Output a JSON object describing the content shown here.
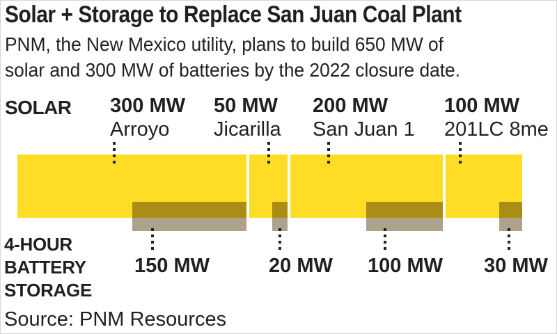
{
  "title": "Solar + Storage to Replace San Juan Coal Plant",
  "subtitle_lines": [
    "PNM, the New Mexico utility, plans to build 650 MW of",
    "solar and 300 MW of batteries by the 2022 closure date."
  ],
  "solar_row_label": "SOLAR",
  "storage_row_label_lines": [
    "4-HOUR",
    "BATTERY",
    "STORAGE"
  ],
  "source": "Source: PNM Resources",
  "colors": {
    "solar_bar": "#FFDD26",
    "battery_over_solar": "#A98D15",
    "battery_below": "#AEA28B",
    "text": "#231F20",
    "source_text": "#58595B"
  },
  "solar_groups": [
    {
      "value": "300 MW",
      "name": "Arroyo"
    },
    {
      "value": "50 MW",
      "name": "Jicarilla"
    },
    {
      "value": "200 MW",
      "name": "San Juan 1"
    },
    {
      "value": "100 MW",
      "name": "201LC 8me"
    }
  ],
  "battery_values": [
    "150 MW",
    "20 MW",
    "100 MW",
    "30 MW"
  ],
  "chart_data": {
    "type": "bar",
    "title": "Solar + Storage to Replace San Juan Coal Plant",
    "subtitle": "PNM, the New Mexico utility, plans to build 650 MW of solar and 300 MW of batteries by the 2022 closure date.",
    "units": "MW",
    "categories": [
      "Arroyo",
      "Jicarilla",
      "San Juan 1",
      "201LC 8me"
    ],
    "series": [
      {
        "name": "Solar",
        "values": [
          300,
          50,
          200,
          100
        ]
      },
      {
        "name": "4-hour battery storage",
        "values": [
          150,
          20,
          100,
          30
        ]
      }
    ],
    "totals": {
      "solar_mw": 650,
      "battery_mw": 300
    },
    "closure_year": 2022,
    "layout": "proportional horizontal segments, battery bars right-aligned under each solar segment",
    "legend_position": "none",
    "grid": false,
    "source": "PNM Resources"
  }
}
